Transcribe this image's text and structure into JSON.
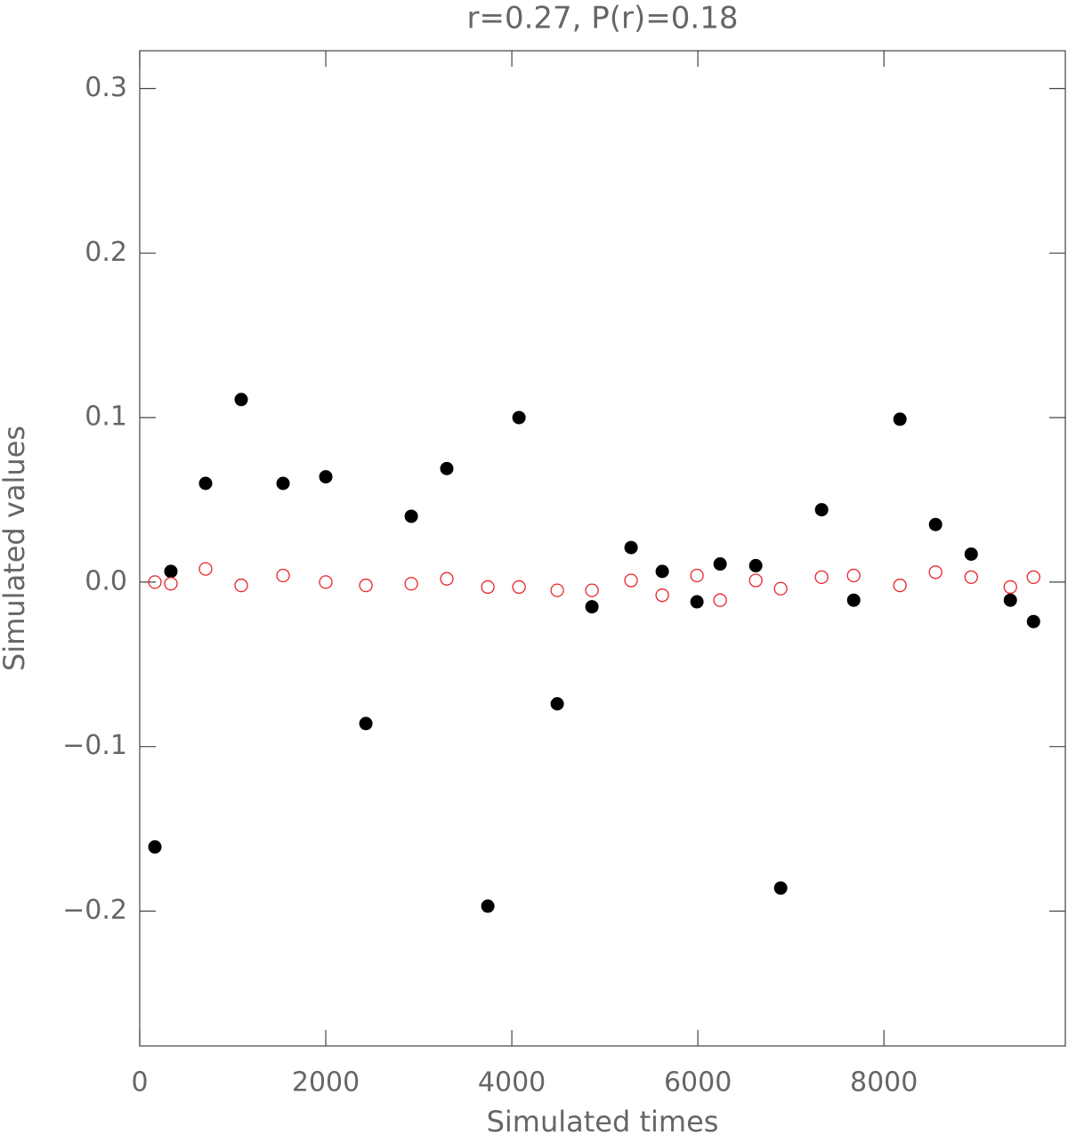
{
  "chart_data": {
    "type": "scatter",
    "title": "r=0.27, P(r)=0.18",
    "x_label": "Simulated times",
    "y_label": "Simulated values",
    "x": [
      163,
      335,
      708,
      1091,
      1541,
      2000,
      2431,
      2919,
      3301,
      3742,
      4077,
      4488,
      4861,
      5282,
      5617,
      5990,
      6239,
      6622,
      6890,
      7330,
      7675,
      8172,
      8555,
      8938,
      9359,
      9608
    ],
    "series": [
      {
        "color": "#000000",
        "filled": true,
        "values": [
          -0.161,
          0.0065,
          0.06,
          0.111,
          0.06,
          0.064,
          -0.086,
          0.04,
          0.069,
          -0.197,
          0.1,
          -0.074,
          -0.015,
          0.021,
          0.0065,
          -0.012,
          0.011,
          0.01,
          -0.186,
          0.044,
          -0.011,
          0.099,
          0.035,
          0.017,
          -0.011,
          -0.024
        ]
      },
      {
        "color": "#e8252a",
        "filled": false,
        "values": [
          0.0,
          -0.001,
          0.008,
          -0.002,
          0.004,
          0.0,
          -0.002,
          -0.001,
          0.002,
          -0.003,
          -0.003,
          -0.005,
          -0.005,
          0.001,
          -0.008,
          0.004,
          -0.011,
          0.001,
          -0.004,
          0.003,
          0.004,
          -0.002,
          0.006,
          0.003,
          -0.003,
          0.003
        ]
      }
    ],
    "xlim": [
      0,
      9950
    ],
    "ylim": [
      -0.282,
      0.323
    ],
    "xticks": [
      0,
      2000,
      4000,
      6000,
      8000
    ],
    "yticks": [
      {
        "value": -0.2,
        "label": "−0.2"
      },
      {
        "value": -0.1,
        "label": "−0.1"
      },
      {
        "value": 0.0,
        "label": "0.0"
      },
      0.1,
      0.2,
      0.3
    ],
    "grid": false
  }
}
